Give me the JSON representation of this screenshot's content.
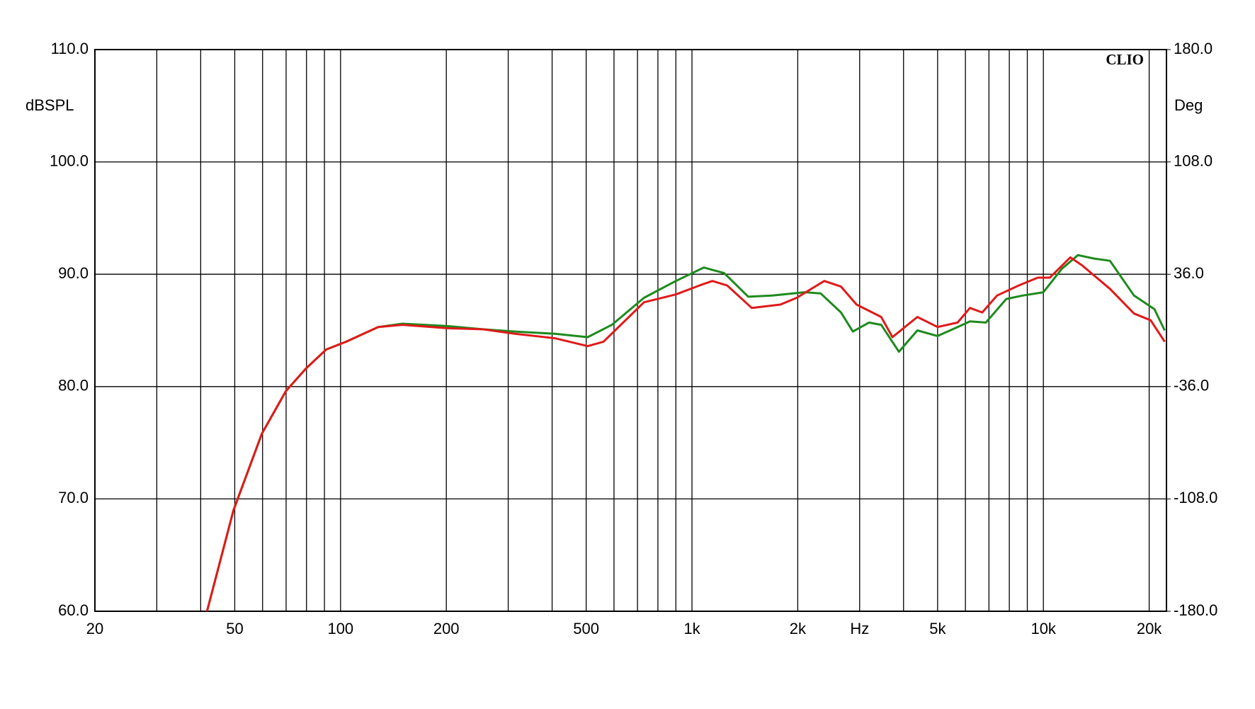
{
  "chart_data": {
    "type": "line",
    "annotation": "CLIO",
    "y_label": "dBSPL",
    "y2_label": "Deg",
    "xscale": "log",
    "xlim": [
      20,
      22400
    ],
    "xticks": [
      20,
      50,
      100,
      200,
      500,
      {
        "value": 1000,
        "label": "1k"
      },
      {
        "value": 2000,
        "label": "2k"
      },
      {
        "value": 3000,
        "label": "Hz"
      },
      {
        "value": 5000,
        "label": "5k"
      },
      {
        "value": 10000,
        "label": "10k"
      },
      {
        "value": 20000,
        "label": "20k"
      }
    ],
    "xminor": [
      30,
      40,
      60,
      70,
      80,
      90,
      300,
      400,
      600,
      700,
      800,
      900,
      4000,
      6000,
      7000,
      8000,
      9000
    ],
    "ylim": [
      60,
      110
    ],
    "yticks": [
      {
        "value": 60,
        "label": "60.0"
      },
      {
        "value": 70,
        "label": "70.0"
      },
      {
        "value": 80,
        "label": "80.0"
      },
      {
        "value": 90,
        "label": "90.0"
      },
      {
        "value": 100,
        "label": "100.0"
      },
      {
        "value": 110,
        "label": "110.0"
      }
    ],
    "y2lim": [
      -180,
      180
    ],
    "y2ticks": [
      {
        "value": -180,
        "label": "-180.0"
      },
      {
        "value": -108,
        "label": "-108.0"
      },
      {
        "value": -36,
        "label": "-36.0"
      },
      {
        "value": 36,
        "label": "36.0"
      },
      {
        "value": 108,
        "label": "108.0"
      },
      {
        "value": 180,
        "label": "180.0"
      }
    ],
    "grid": true,
    "series": [
      {
        "color": "#1e8a1e",
        "x": [
          41.7,
          49.6,
          59.7,
          69.9,
          79.7,
          91,
          103.8,
          128,
          150,
          200,
          254,
          314,
          408,
          505,
          592,
          730,
          900,
          1081,
          1235,
          1446,
          1693,
          2090,
          2324,
          2654,
          2870,
          3190,
          3455,
          3880,
          4380,
          5000,
          5700,
          6180,
          6860,
          7840,
          8720,
          10000,
          11290,
          12540,
          13930,
          15470,
          18110,
          20690,
          22140
        ],
        "values": [
          60,
          69,
          75.8,
          79.6,
          81.6,
          83.3,
          84,
          85.3,
          85.6,
          85.4,
          85.1,
          84.9,
          84.7,
          84.4,
          85.5,
          87.9,
          89.4,
          90.6,
          90.1,
          88,
          88.1,
          88.4,
          88.3,
          86.6,
          84.9,
          85.7,
          85.5,
          83.1,
          85,
          84.5,
          85.3,
          85.8,
          85.7,
          87.8,
          88.1,
          88.4,
          90.5,
          91.7,
          91.4,
          91.2,
          88.1,
          86.9,
          85
        ]
      },
      {
        "color": "#e01a1a",
        "x": [
          41.7,
          49.6,
          59.7,
          69.9,
          79.7,
          91,
          103.8,
          128,
          150,
          200,
          254,
          314,
          408,
          505,
          560,
          730,
          900,
          1050,
          1143,
          1260,
          1480,
          1785,
          1985,
          2380,
          2654,
          2940,
          3455,
          3720,
          4380,
          5000,
          5700,
          6180,
          6700,
          7380,
          8500,
          9640,
          10430,
          11930,
          12880,
          15470,
          18110,
          20200,
          22140
        ],
        "values": [
          60,
          69,
          75.8,
          79.6,
          81.6,
          83.3,
          84,
          85.3,
          85.5,
          85.2,
          85.1,
          84.7,
          84.3,
          83.6,
          84,
          87.5,
          88.2,
          89,
          89.4,
          89,
          87,
          87.3,
          87.9,
          89.4,
          88.9,
          87.3,
          86.2,
          84.4,
          86.2,
          85.3,
          85.7,
          87,
          86.6,
          88.1,
          89,
          89.7,
          89.7,
          91.5,
          90.8,
          88.7,
          86.5,
          85.9,
          84
        ]
      }
    ]
  }
}
